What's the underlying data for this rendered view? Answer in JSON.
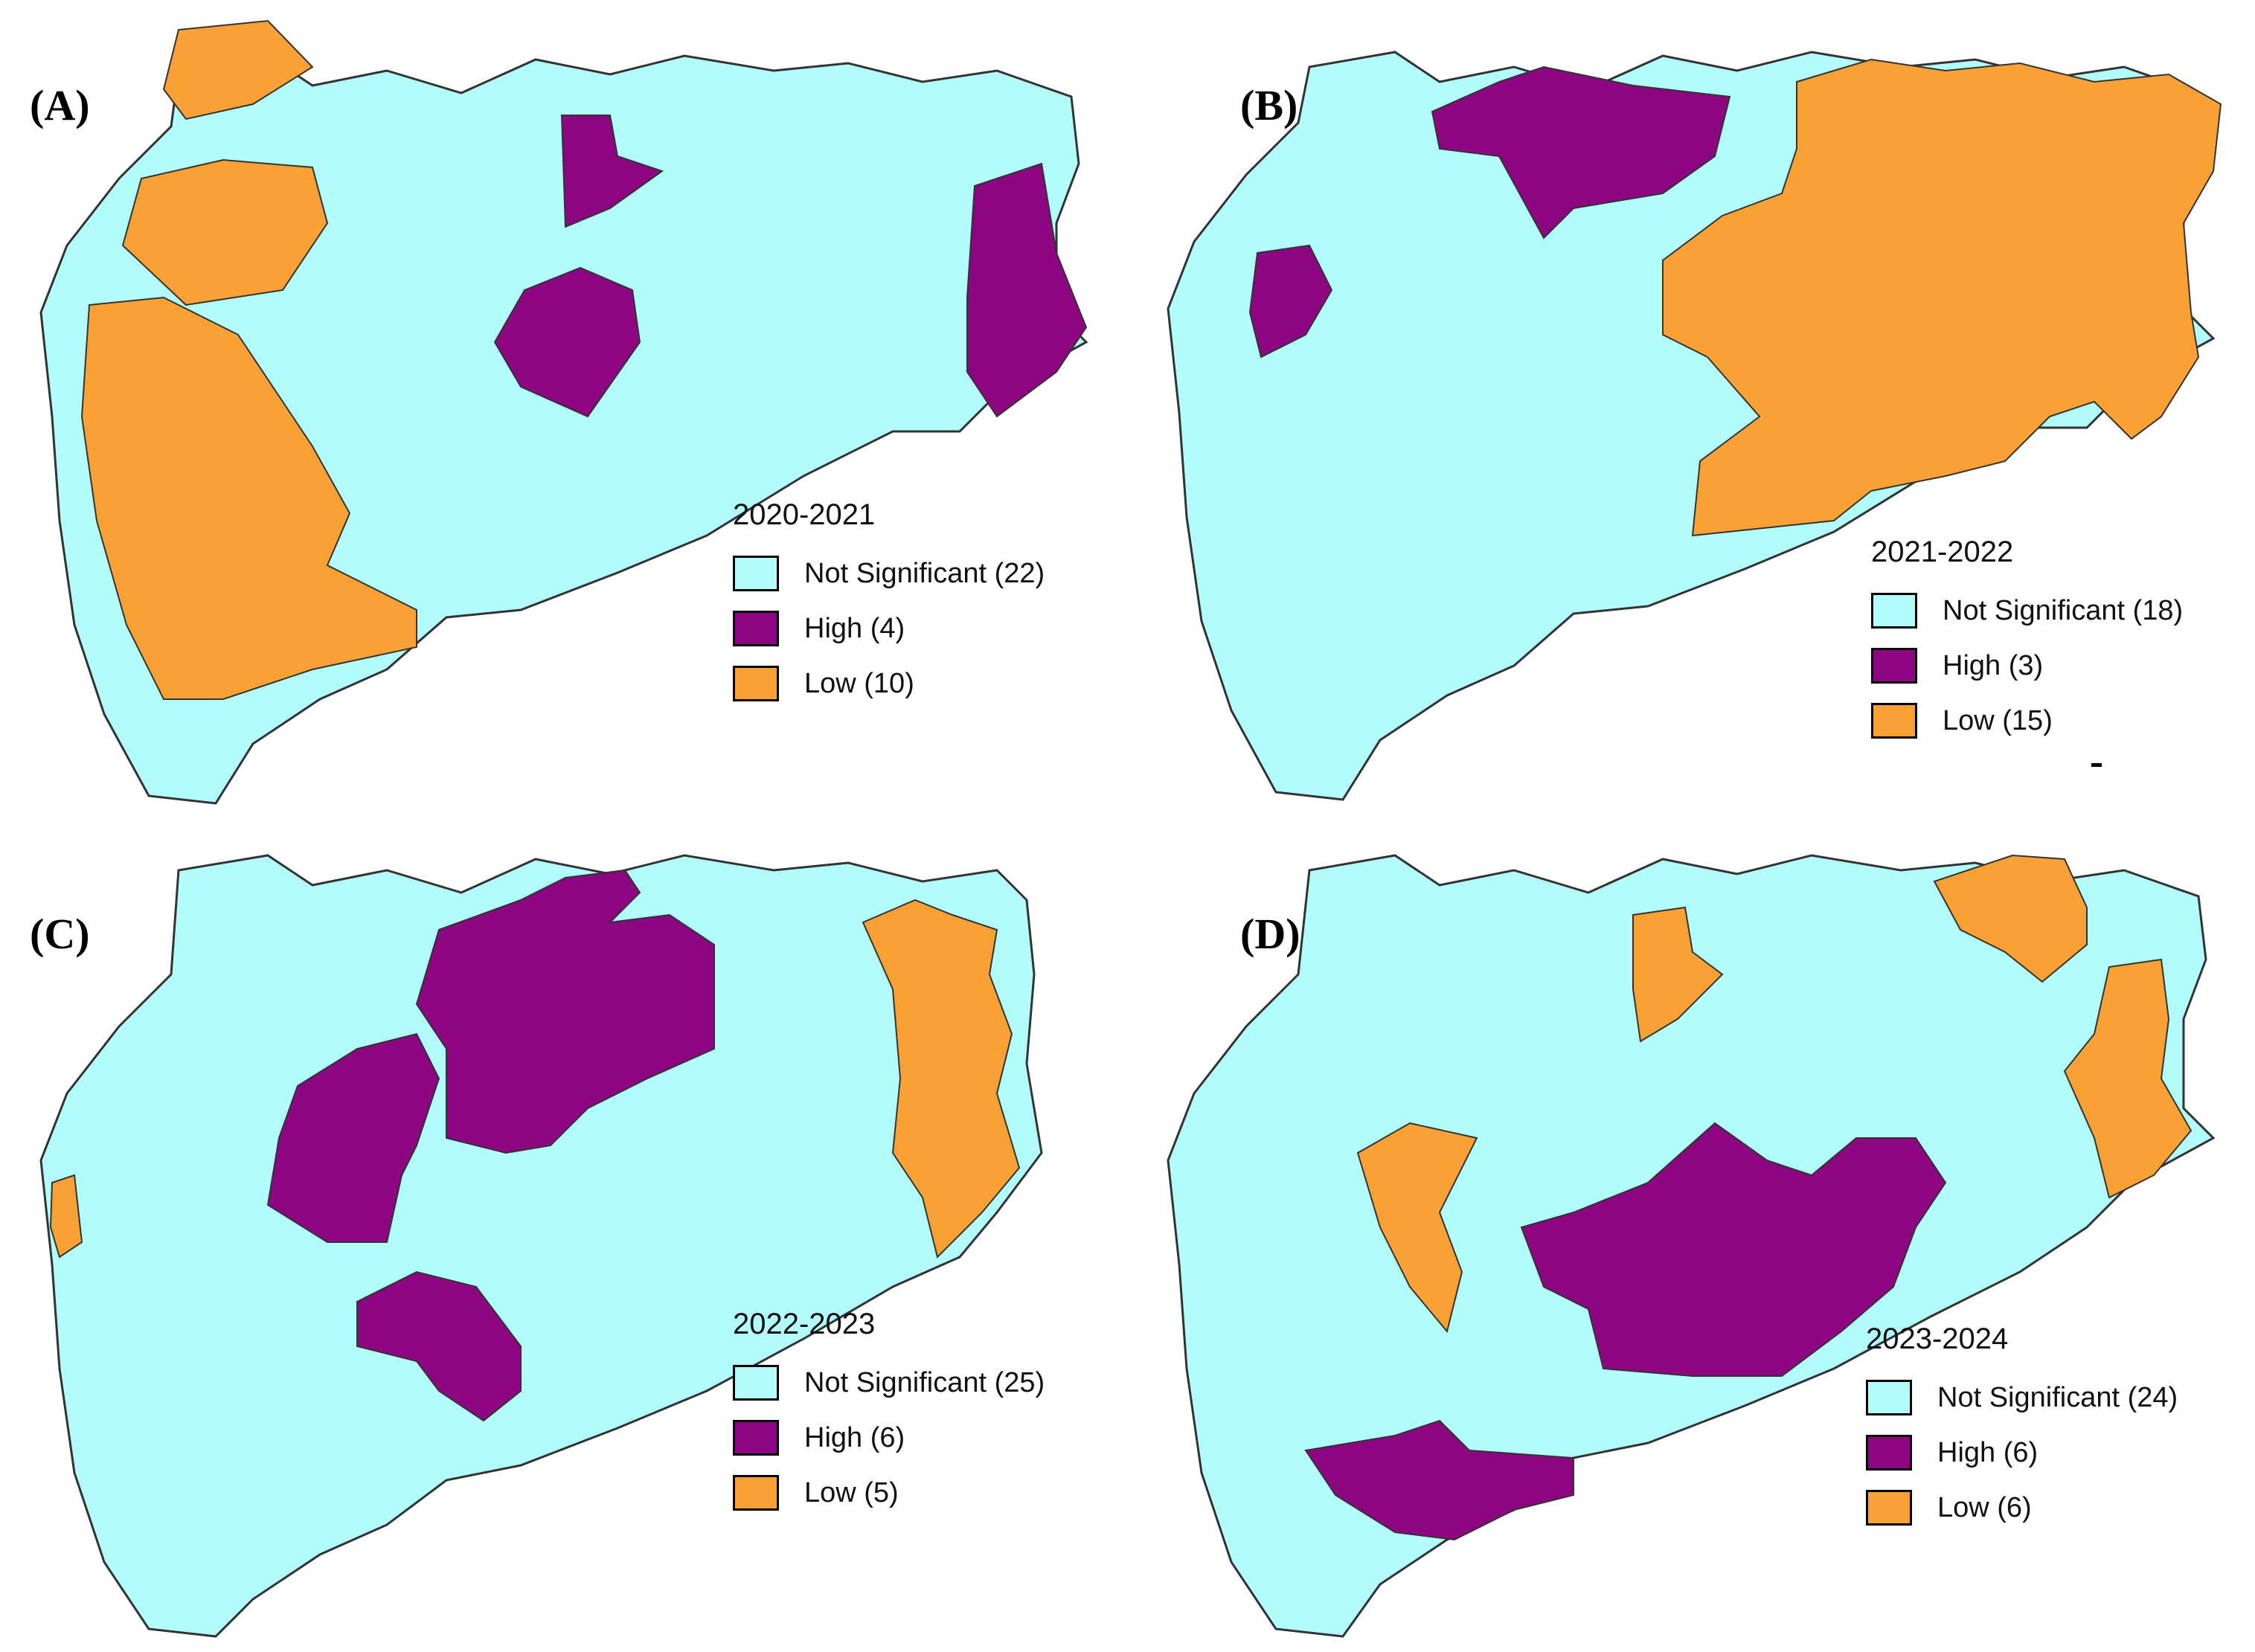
{
  "colors": {
    "not_significant": "#b3fcfc",
    "high": "#8e0582",
    "low": "#f9a135",
    "border": "#333333"
  },
  "panels": [
    {
      "label": "(A)",
      "period": "2020-2021",
      "legend": [
        {
          "label": "Not Significant (22)",
          "class": "not_significant"
        },
        {
          "label": "High (4)",
          "class": "high"
        },
        {
          "label": "Low (10)",
          "class": "low"
        }
      ]
    },
    {
      "label": "(B)",
      "period": "2021-2022",
      "legend": [
        {
          "label": "Not Significant (18)",
          "class": "not_significant"
        },
        {
          "label": "High (3)",
          "class": "high"
        },
        {
          "label": "Low (15)",
          "class": "low"
        }
      ]
    },
    {
      "label": "(C)",
      "period": "2022-2023",
      "legend": [
        {
          "label": "Not Significant (25)",
          "class": "not_significant"
        },
        {
          "label": "High (6)",
          "class": "high"
        },
        {
          "label": "Low (5)",
          "class": "low"
        }
      ]
    },
    {
      "label": "(D)",
      "period": "2023-2024",
      "legend": [
        {
          "label": "Not Significant (24)",
          "class": "not_significant"
        },
        {
          "label": "High (6)",
          "class": "high"
        },
        {
          "label": "Low (6)",
          "class": "low"
        }
      ]
    }
  ]
}
